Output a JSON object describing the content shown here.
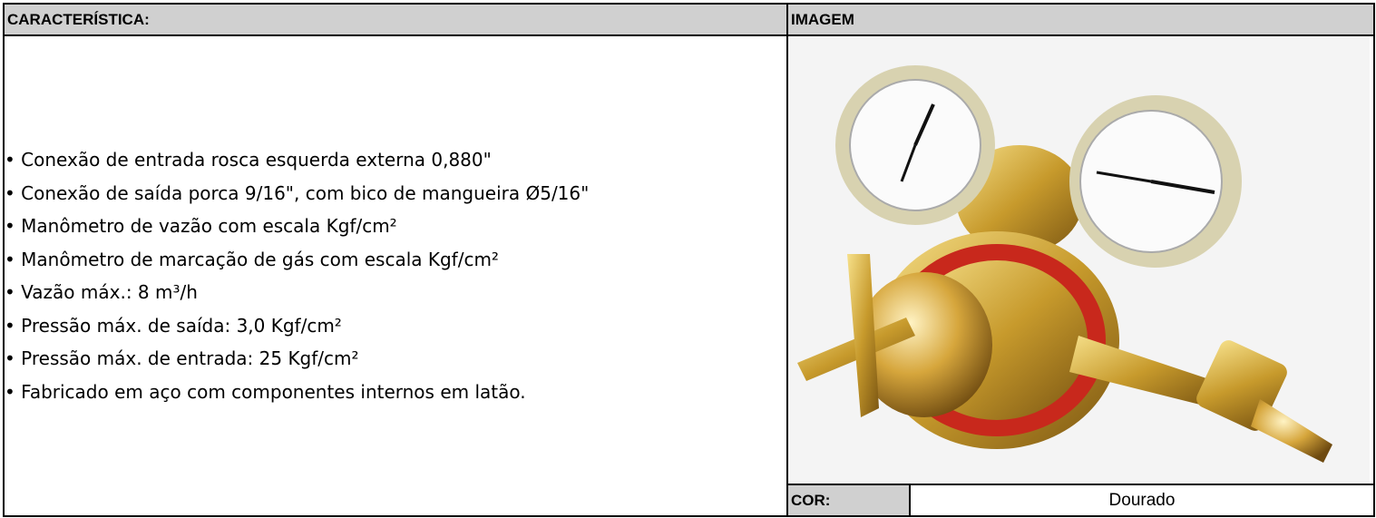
{
  "header": {
    "characteristic": "CARACTERÍSTICA:",
    "image": "IMAGEM"
  },
  "features": [
    "Conexão de entrada rosca esquerda externa 0,880\"",
    "Conexão de saída porca 9/16\", com bico de mangueira Ø5/16\"",
    "Manômetro de vazão com escala Kgf/cm²",
    "Manômetro de marcação de gás com escala Kgf/cm²",
    "Vazão máx.: 8 m³/h",
    "Pressão máx. de saída: 3,0 Kgf/cm²",
    "Pressão máx. de entrada: 25 Kgf/cm²",
    "Fabricado em aço com componentes internos em latão."
  ],
  "color": {
    "label": "COR:",
    "value": "Dourado"
  }
}
